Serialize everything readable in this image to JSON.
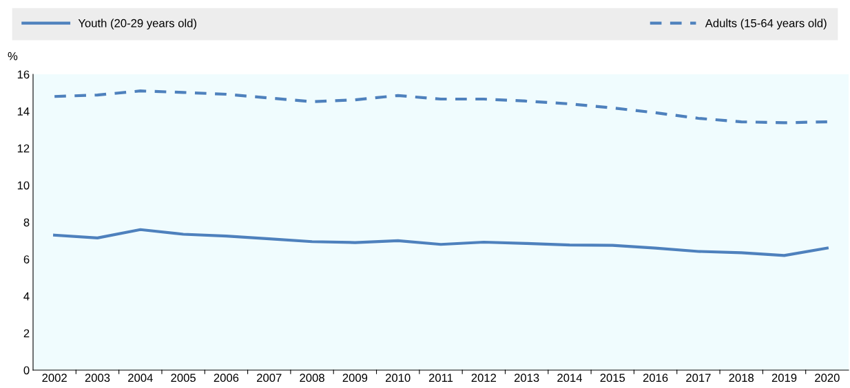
{
  "chart_data": {
    "type": "line",
    "ylabel": "%",
    "categories": [
      "2002",
      "2003",
      "2004",
      "2005",
      "2006",
      "2007",
      "2008",
      "2009",
      "2010",
      "2011",
      "2012",
      "2013",
      "2014",
      "2015",
      "2016",
      "2017",
      "2018",
      "2019",
      "2020"
    ],
    "series": [
      {
        "name": "Youth (20-29 years old)",
        "color": "#4e81bd",
        "line_style": "solid",
        "values": [
          7.3,
          7.15,
          7.6,
          7.35,
          7.25,
          7.1,
          6.95,
          6.9,
          7.0,
          6.8,
          6.92,
          6.85,
          6.77,
          6.75,
          6.6,
          6.42,
          6.35,
          6.2,
          6.6
        ]
      },
      {
        "name": "Adults (15-64 years old)",
        "color": "#4e81bd",
        "line_style": "dashed",
        "values": [
          14.8,
          14.88,
          15.1,
          15.02,
          14.92,
          14.72,
          14.52,
          14.62,
          14.85,
          14.66,
          14.66,
          14.55,
          14.4,
          14.18,
          13.92,
          13.62,
          13.43,
          13.38,
          13.43
        ]
      }
    ],
    "ylim": [
      0,
      16
    ],
    "yticks": [
      0,
      2,
      4,
      6,
      8,
      10,
      12,
      14,
      16
    ],
    "grid": false,
    "legend": "top",
    "marker": "none"
  }
}
